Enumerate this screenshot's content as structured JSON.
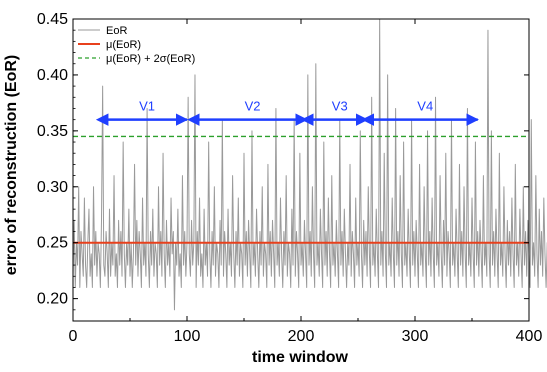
{
  "chart_data": {
    "type": "line",
    "xlabel": "time window",
    "ylabel": "error of reconstruction (EoR)",
    "xlim": [
      0,
      400
    ],
    "ylim": [
      0.18,
      0.45
    ],
    "xticks": [
      0,
      100,
      200,
      300,
      400
    ],
    "yticks": [
      0.2,
      0.25,
      0.3,
      0.35,
      0.4,
      0.45
    ],
    "ytick_labels": [
      "0.20",
      "0.25",
      "0.30",
      "0.35",
      "0.40",
      "0.45"
    ],
    "grid": false,
    "legend_position": "top-left",
    "legend": [
      {
        "label": "EoR",
        "color": "#9a9a9a",
        "style": "solid"
      },
      {
        "label": "μ(EoR)",
        "color": "#e8401c",
        "style": "solid"
      },
      {
        "label": "μ(EoR) + 2σ(EoR)",
        "color": "#2ca02c",
        "style": "dashed"
      }
    ],
    "series": [
      {
        "name": "EoR",
        "color": "#9a9a9a",
        "x_start": 0,
        "x_step": 1,
        "values": [
          0.22,
          0.27,
          0.21,
          0.25,
          0.23,
          0.3,
          0.21,
          0.26,
          0.24,
          0.22,
          0.29,
          0.23,
          0.21,
          0.25,
          0.28,
          0.22,
          0.24,
          0.21,
          0.3,
          0.23,
          0.26,
          0.22,
          0.25,
          0.24,
          0.21,
          0.27,
          0.39,
          0.23,
          0.22,
          0.26,
          0.24,
          0.21,
          0.28,
          0.22,
          0.25,
          0.23,
          0.31,
          0.22,
          0.24,
          0.21,
          0.27,
          0.23,
          0.26,
          0.22,
          0.34,
          0.24,
          0.21,
          0.25,
          0.23,
          0.28,
          0.22,
          0.25,
          0.21,
          0.24,
          0.32,
          0.23,
          0.27,
          0.22,
          0.26,
          0.24,
          0.21,
          0.29,
          0.23,
          0.25,
          0.22,
          0.37,
          0.24,
          0.21,
          0.26,
          0.23,
          0.28,
          0.22,
          0.25,
          0.24,
          0.21,
          0.3,
          0.23,
          0.26,
          0.22,
          0.33,
          0.24,
          0.21,
          0.27,
          0.23,
          0.25,
          0.22,
          0.29,
          0.24,
          0.26,
          0.19,
          0.25,
          0.23,
          0.28,
          0.22,
          0.24,
          0.21,
          0.31,
          0.23,
          0.26,
          0.22,
          0.25,
          0.38,
          0.24,
          0.22,
          0.27,
          0.23,
          0.25,
          0.4,
          0.21,
          0.26,
          0.23,
          0.29,
          0.22,
          0.24,
          0.21,
          0.28,
          0.23,
          0.25,
          0.22,
          0.34,
          0.24,
          0.21,
          0.26,
          0.23,
          0.3,
          0.22,
          0.25,
          0.24,
          0.21,
          0.27,
          0.23,
          0.36,
          0.22,
          0.26,
          0.24,
          0.21,
          0.28,
          0.23,
          0.25,
          0.22,
          0.31,
          0.24,
          0.21,
          0.26,
          0.23,
          0.29,
          0.22,
          0.25,
          0.24,
          0.21,
          0.33,
          0.23,
          0.26,
          0.22,
          0.27,
          0.24,
          0.21,
          0.35,
          0.23,
          0.25,
          0.22,
          0.28,
          0.24,
          0.21,
          0.26,
          0.23,
          0.3,
          0.22,
          0.25,
          0.24,
          0.21,
          0.32,
          0.23,
          0.26,
          0.22,
          0.27,
          0.24,
          0.21,
          0.37,
          0.23,
          0.25,
          0.22,
          0.29,
          0.24,
          0.21,
          0.26,
          0.23,
          0.31,
          0.22,
          0.25,
          0.24,
          0.21,
          0.28,
          0.23,
          0.36,
          0.22,
          0.26,
          0.24,
          0.21,
          0.33,
          0.23,
          0.25,
          0.22,
          0.27,
          0.24,
          0.21,
          0.4,
          0.23,
          0.26,
          0.22,
          0.3,
          0.24,
          0.21,
          0.41,
          0.23,
          0.25,
          0.22,
          0.28,
          0.24,
          0.21,
          0.34,
          0.23,
          0.26,
          0.22,
          0.29,
          0.24,
          0.21,
          0.31,
          0.23,
          0.25,
          0.22,
          0.27,
          0.24,
          0.21,
          0.36,
          0.23,
          0.26,
          0.22,
          0.28,
          0.24,
          0.21,
          0.25,
          0.23,
          0.32,
          0.22,
          0.26,
          0.24,
          0.21,
          0.29,
          0.23,
          0.25,
          0.22,
          0.35,
          0.24,
          0.21,
          0.27,
          0.23,
          0.26,
          0.22,
          0.3,
          0.24,
          0.21,
          0.38,
          0.23,
          0.25,
          0.22,
          0.28,
          0.24,
          0.21,
          0.45,
          0.23,
          0.26,
          0.22,
          0.33,
          0.24,
          0.21,
          0.4,
          0.23,
          0.25,
          0.22,
          0.29,
          0.24,
          0.21,
          0.37,
          0.23,
          0.26,
          0.22,
          0.31,
          0.24,
          0.21,
          0.34,
          0.23,
          0.25,
          0.22,
          0.28,
          0.24,
          0.21,
          0.36,
          0.23,
          0.26,
          0.22,
          0.27,
          0.24,
          0.21,
          0.32,
          0.23,
          0.25,
          0.22,
          0.3,
          0.24,
          0.21,
          0.35,
          0.23,
          0.26,
          0.22,
          0.29,
          0.24,
          0.21,
          0.38,
          0.23,
          0.25,
          0.22,
          0.31,
          0.24,
          0.21,
          0.27,
          0.23,
          0.33,
          0.22,
          0.26,
          0.24,
          0.21,
          0.36,
          0.23,
          0.25,
          0.22,
          0.28,
          0.24,
          0.21,
          0.32,
          0.23,
          0.26,
          0.22,
          0.3,
          0.24,
          0.21,
          0.37,
          0.23,
          0.25,
          0.22,
          0.29,
          0.24,
          0.21,
          0.34,
          0.23,
          0.26,
          0.22,
          0.27,
          0.24,
          0.21,
          0.31,
          0.23,
          0.25,
          0.22,
          0.44,
          0.24,
          0.21,
          0.35,
          0.23,
          0.26,
          0.22,
          0.28,
          0.24,
          0.21,
          0.33,
          0.23,
          0.25,
          0.22,
          0.3,
          0.24,
          0.21,
          0.27,
          0.23,
          0.26,
          0.22,
          0.29,
          0.24,
          0.21,
          0.32,
          0.23,
          0.25,
          0.22,
          0.28,
          0.24,
          0.21,
          0.3,
          0.23,
          0.26,
          0.22,
          0.27,
          0.24,
          0.21,
          0.36,
          0.23,
          0.25,
          0.22,
          0.31,
          0.24,
          0.21,
          0.28,
          0.23,
          0.26,
          0.22,
          0.29,
          0.24,
          0.21,
          0.25,
          0.23,
          0.27,
          0.22,
          0.24,
          0.21
        ]
      }
    ],
    "reference_lines": [
      {
        "name": "μ(EoR)",
        "y": 0.25,
        "color": "#e8401c",
        "style": "solid"
      },
      {
        "name": "μ(EoR) + 2σ(EoR)",
        "y": 0.345,
        "color": "#2ca02c",
        "style": "dashed"
      }
    ],
    "annotations": [
      {
        "label": "V1",
        "x_start": 30,
        "x_end": 100,
        "y": 0.36,
        "color": "#1f3fff"
      },
      {
        "label": "V2",
        "x_start": 110,
        "x_end": 205,
        "y": 0.36,
        "color": "#1f3fff"
      },
      {
        "label": "V3",
        "x_start": 210,
        "x_end": 258,
        "y": 0.36,
        "color": "#1f3fff"
      },
      {
        "label": "V4",
        "x_start": 263,
        "x_end": 355,
        "y": 0.36,
        "color": "#1f3fff"
      }
    ]
  }
}
